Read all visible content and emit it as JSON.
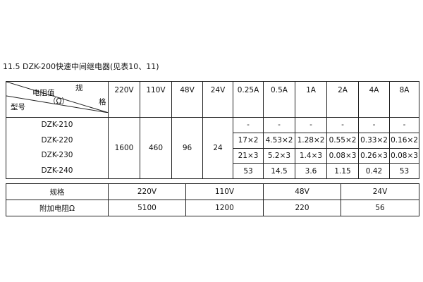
{
  "title": "11.5 DZK-200快速中间继电器(见表10、11)",
  "table1": {
    "corner": {
      "top": "规",
      "mid": "电阻值",
      "unit": "（Ω）",
      "right": "格",
      "bottom": "型号"
    },
    "columns": [
      "220V",
      "110V",
      "48V",
      "24V",
      "0.25A",
      "0.5A",
      "1A",
      "2A",
      "4A",
      "8A"
    ],
    "models": [
      "DZK-210",
      "DZK-220",
      "DZK-230",
      "DZK-240"
    ],
    "voltage_values": [
      "1600",
      "460",
      "96",
      "24"
    ],
    "current_rows": [
      [
        "-",
        "-",
        "-",
        "-",
        "-",
        "-"
      ],
      [
        "17×2",
        "4.53×2",
        "1.28×2",
        "0.55×2",
        "0.33×2",
        "0.16×2"
      ],
      [
        "21×3",
        "5.2×3",
        "1.4×3",
        "0.08×3",
        "0.26×3",
        "0.08×3"
      ],
      [
        "53",
        "14.5",
        "3.6",
        "1.15",
        "0.42",
        "53"
      ]
    ]
  },
  "table2": {
    "header": [
      "规格",
      "220V",
      "110V",
      "48V",
      "24V"
    ],
    "row": [
      "附加电阻Ω",
      "5100",
      "1200",
      "220",
      "56"
    ]
  }
}
